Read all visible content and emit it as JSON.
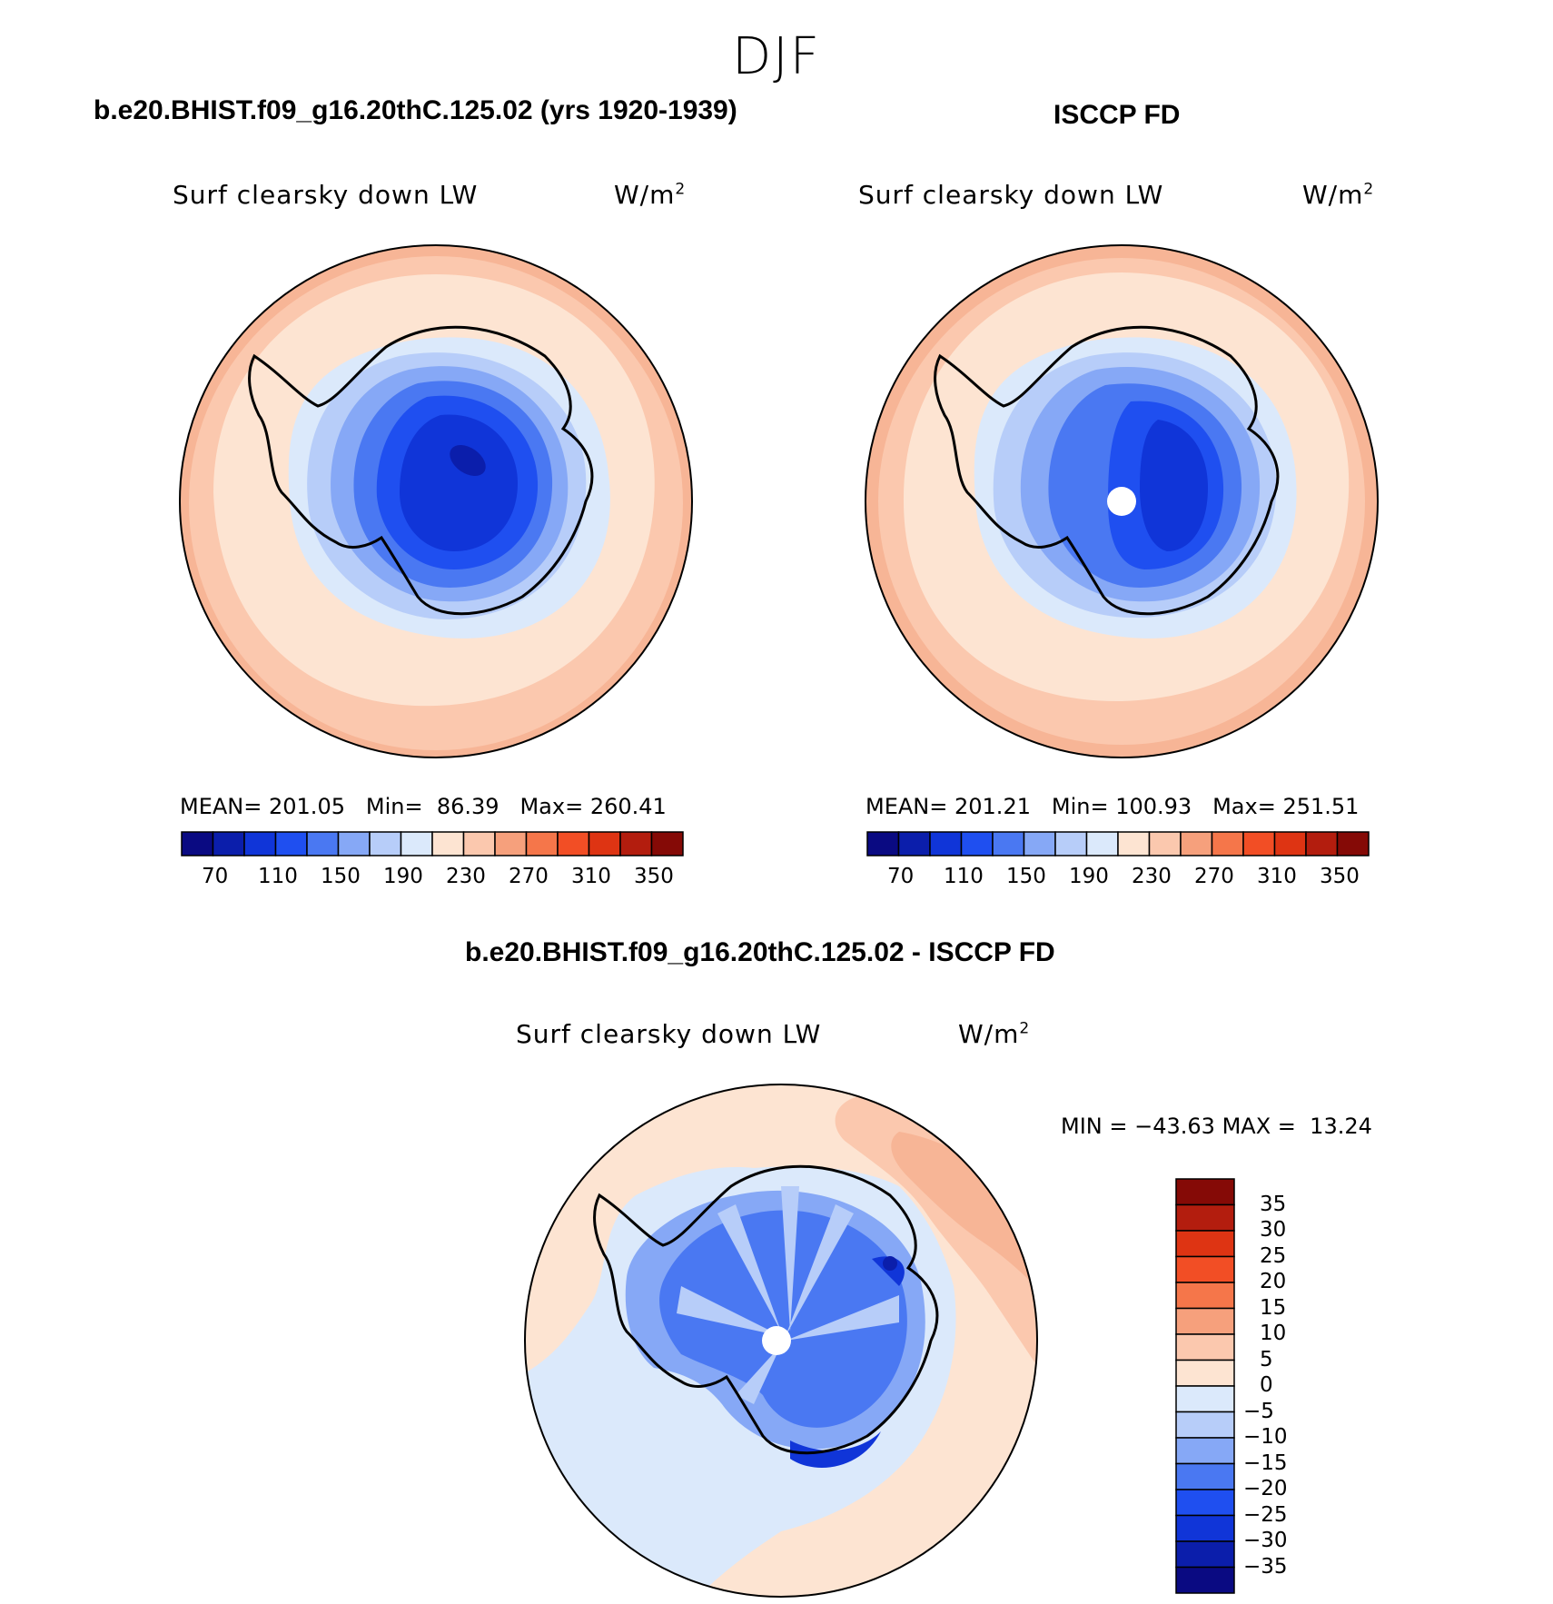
{
  "page": {
    "season": "DJF"
  },
  "panels": [
    {
      "title": "b.e20.BHIST.f09_g16.20thC.125.02 (yrs 1920-1939)",
      "variable": "Surf clearsky down LW",
      "units": "W/m",
      "units_sup": "2",
      "mean_label": "MEAN=",
      "mean": "201.05",
      "min_label": "Min=",
      "min": "86.39",
      "max_label": "Max=",
      "max": "260.41"
    },
    {
      "title": "ISCCP FD",
      "variable": "Surf clearsky down LW",
      "units": "W/m",
      "units_sup": "2",
      "mean_label": "MEAN=",
      "mean": "201.21",
      "min_label": "Min=",
      "min": "100.93",
      "max_label": "Max=",
      "max": "251.51"
    },
    {
      "title": "b.e20.BHIST.f09_g16.20thC.125.02 - ISCCP FD",
      "variable": "Surf clearsky down LW",
      "units": "W/m",
      "units_sup": "2",
      "min_label": "MIN =",
      "min": "−43.63",
      "max_label": "MAX =",
      "max": "13.24"
    }
  ],
  "colorbar_abs": {
    "labels": [
      "70",
      "110",
      "150",
      "190",
      "230",
      "270",
      "310",
      "350"
    ],
    "colors": [
      "#0a0a82",
      "#0b1eab",
      "#1035d8",
      "#1f4ff0",
      "#4a78f2",
      "#86a8f6",
      "#b7cdf9",
      "#dbe9fb",
      "#fde4d2",
      "#fbc8ae",
      "#f6a07c",
      "#f5764a",
      "#f24e25",
      "#de3413",
      "#b31d0e",
      "#850a06"
    ]
  },
  "colorbar_diff": {
    "labels": [
      "35",
      "30",
      "25",
      "20",
      "15",
      "10",
      "5",
      "0",
      "−5",
      "−10",
      "−15",
      "−20",
      "−25",
      "−30",
      "−35"
    ],
    "colors": [
      "#850a06",
      "#b31d0e",
      "#de3413",
      "#f24e25",
      "#f5764a",
      "#f6a07c",
      "#fbc8ae",
      "#fde4d2",
      "#dbe9fb",
      "#b7cdf9",
      "#86a8f6",
      "#4a78f2",
      "#1f4ff0",
      "#1035d8",
      "#0b1eab",
      "#0a0a82"
    ]
  },
  "map_colors": {
    "ocean_outer": "#f7b596",
    "ocean_mid": "#fbc8ae",
    "ocean_inner": "#fde4d2",
    "sea_ice": "#dbe9fb",
    "shelf": "#b7cdf9",
    "coast_ice": "#86a8f6",
    "plateau_low": "#4a78f2",
    "plateau_mid": "#1f4ff0",
    "plateau_high": "#1035d8",
    "plateau_peak": "#0b1eab"
  }
}
